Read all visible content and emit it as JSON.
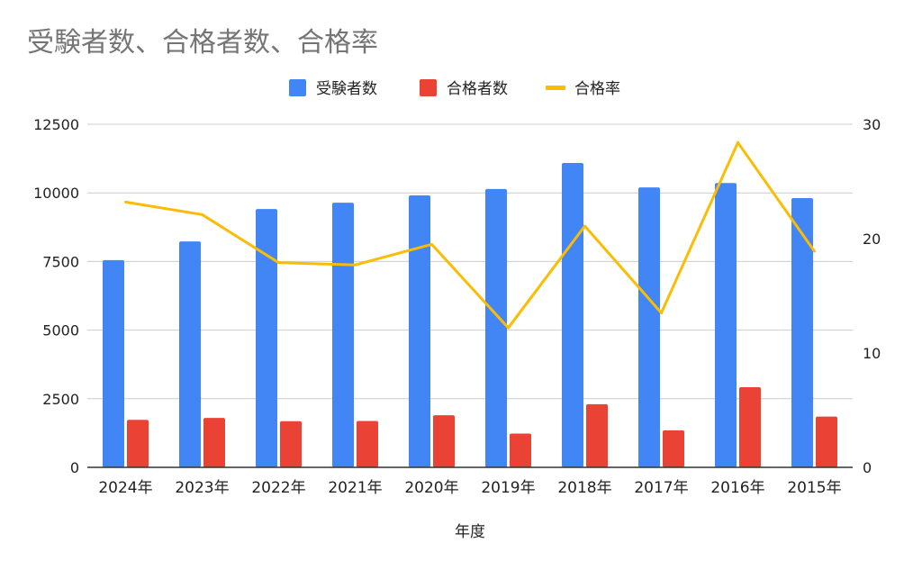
{
  "chart_data": {
    "type": "bar",
    "title": "受験者数、合格者数、合格率",
    "xlabel": "年度",
    "ylabel": "",
    "ylabel_right": "",
    "categories": [
      "2024年",
      "2023年",
      "2022年",
      "2021年",
      "2020年",
      "2019年",
      "2018年",
      "2017年",
      "2016年",
      "2015年"
    ],
    "series": [
      {
        "name": "受験者数",
        "type": "bar",
        "axis": "left",
        "color": "#4285F4",
        "values": [
          7550,
          8230,
          9410,
          9640,
          9910,
          10140,
          11090,
          10200,
          10360,
          9810
        ]
      },
      {
        "name": "合格者数",
        "type": "bar",
        "axis": "left",
        "color": "#EA4335",
        "values": [
          1730,
          1800,
          1680,
          1690,
          1900,
          1230,
          2300,
          1350,
          2920,
          1850
        ]
      },
      {
        "name": "合格率",
        "type": "line",
        "axis": "right",
        "color": "#FBBC04",
        "values": [
          23.2,
          22.1,
          17.9,
          17.7,
          19.5,
          12.2,
          21.1,
          13.5,
          28.4,
          18.9
        ]
      }
    ],
    "ylim": [
      0,
      12500
    ],
    "yticks": [
      "0",
      "2500",
      "5000",
      "7500",
      "10000",
      "12500"
    ],
    "ylim_right": [
      0,
      30
    ],
    "yticks_right": [
      "0",
      "10",
      "20",
      "30"
    ],
    "grid": true,
    "legend_position": "top-center"
  }
}
